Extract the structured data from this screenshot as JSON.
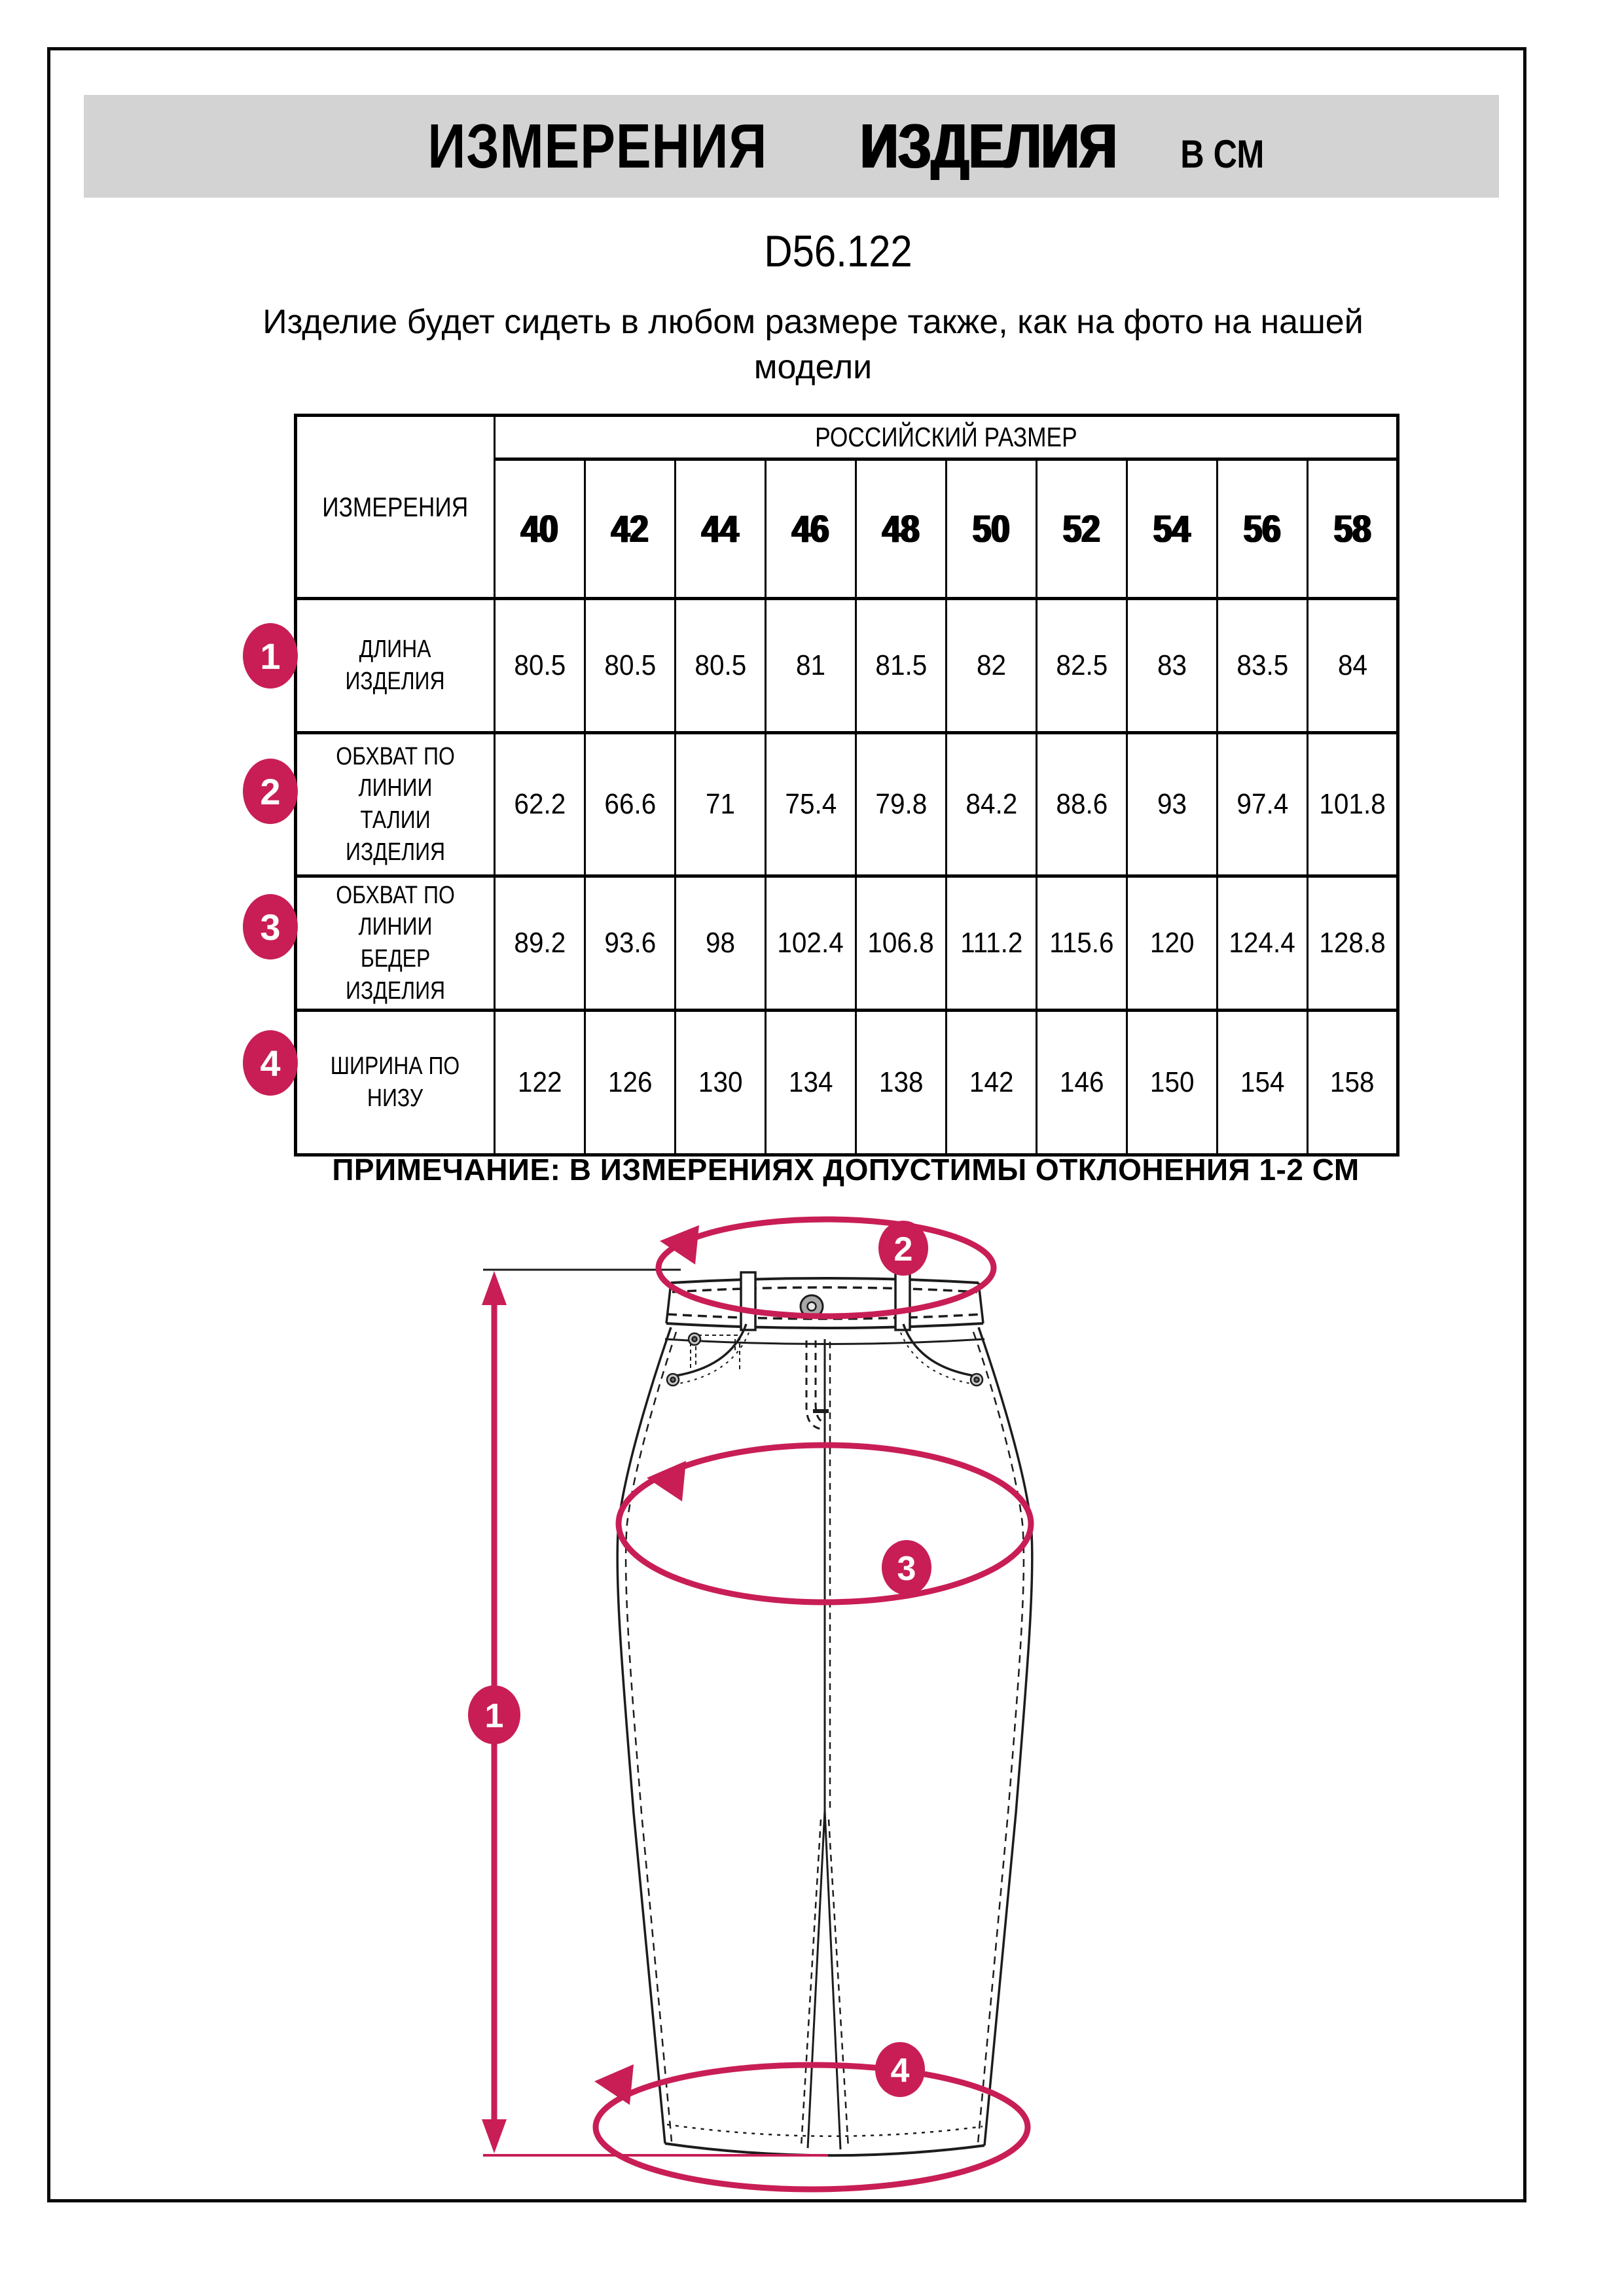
{
  "page": {
    "header": {
      "title_main": "ИЗМЕРЕНИЯ",
      "title_secondary": "ИЗДЕЛИЯ",
      "title_units": "В СМ"
    },
    "model_code": "D56.122",
    "subtitle": "Изделие будет сидеть в любом размере также, как на фото на нашей модели",
    "note": "ПРИМЕЧАНИЕ: В ИЗМЕРЕНИЯХ ДОПУСТИМЫ ОТКЛОНЕНИЯ 1-2 СМ"
  },
  "table": {
    "measure_col_header": "ИЗМЕРЕНИЯ",
    "size_group_header": "РОССИЙСКИЙ РАЗМЕР",
    "sizes": [
      "40",
      "42",
      "44",
      "46",
      "48",
      "50",
      "52",
      "54",
      "56",
      "58"
    ],
    "rows": [
      {
        "num": "1",
        "label": "ДЛИНА\nИЗДЕЛИЯ",
        "values": [
          "80.5",
          "80.5",
          "80.5",
          "81",
          "81.5",
          "82",
          "82.5",
          "83",
          "83.5",
          "84"
        ]
      },
      {
        "num": "2",
        "label": "ОБХВАТ ПО\nЛИНИИ\nТАЛИИ\nИЗДЕЛИЯ",
        "values": [
          "62.2",
          "66.6",
          "71",
          "75.4",
          "79.8",
          "84.2",
          "88.6",
          "93",
          "97.4",
          "101.8"
        ]
      },
      {
        "num": "3",
        "label": "ОБХВАТ ПО\nЛИНИИ\nБЕДЕР\nИЗДЕЛИЯ",
        "values": [
          "89.2",
          "93.6",
          "98",
          "102.4",
          "106.8",
          "111.2",
          "115.6",
          "120",
          "124.4",
          "128.8"
        ]
      },
      {
        "num": "4",
        "label": "ШИРИНА ПО\nНИЗУ",
        "values": [
          "122",
          "126",
          "130",
          "134",
          "138",
          "142",
          "146",
          "150",
          "154",
          "158"
        ]
      }
    ]
  },
  "diagram": {
    "badges": [
      "1",
      "2",
      "3",
      "4"
    ],
    "accent_color": "#c81e55",
    "line_color": "#1c1c1c"
  }
}
